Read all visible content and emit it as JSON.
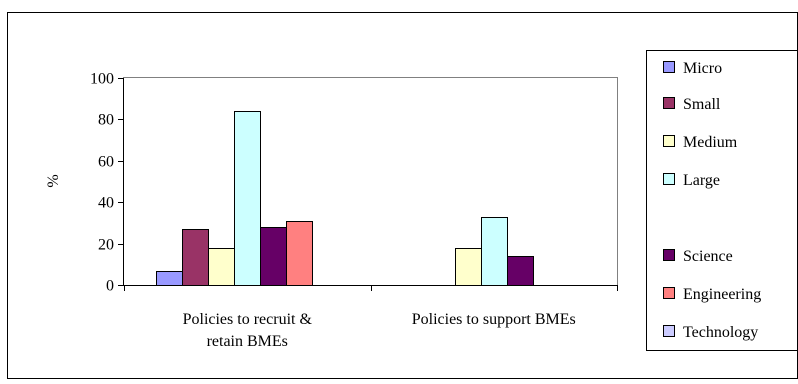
{
  "chart_data": {
    "type": "bar",
    "title": "",
    "xlabel": "",
    "ylabel": "%",
    "ylim": [
      0,
      100
    ],
    "yticks": [
      0,
      20,
      40,
      60,
      80,
      100
    ],
    "grid": false,
    "legend_position": "right",
    "categories": [
      [
        "Policies to recruit &",
        "retain BMEs"
      ],
      [
        "Policies to support BMEs"
      ]
    ],
    "series": [
      {
        "name": "Micro",
        "color": "#9999ff",
        "values": [
          7,
          0
        ]
      },
      {
        "name": "Small",
        "color": "#993366",
        "values": [
          27,
          0
        ]
      },
      {
        "name": "Medium",
        "color": "#ffffcc",
        "values": [
          18,
          18
        ]
      },
      {
        "name": "Large",
        "color": "#ccffff",
        "values": [
          84,
          33
        ]
      },
      {
        "name": "Science",
        "color": "#660066",
        "values": [
          28,
          14
        ]
      },
      {
        "name": "Engineering",
        "color": "#ff8080",
        "values": [
          31,
          0
        ]
      },
      {
        "name": "Technology",
        "color": "#ccccff",
        "values": [
          0,
          0
        ]
      }
    ]
  }
}
